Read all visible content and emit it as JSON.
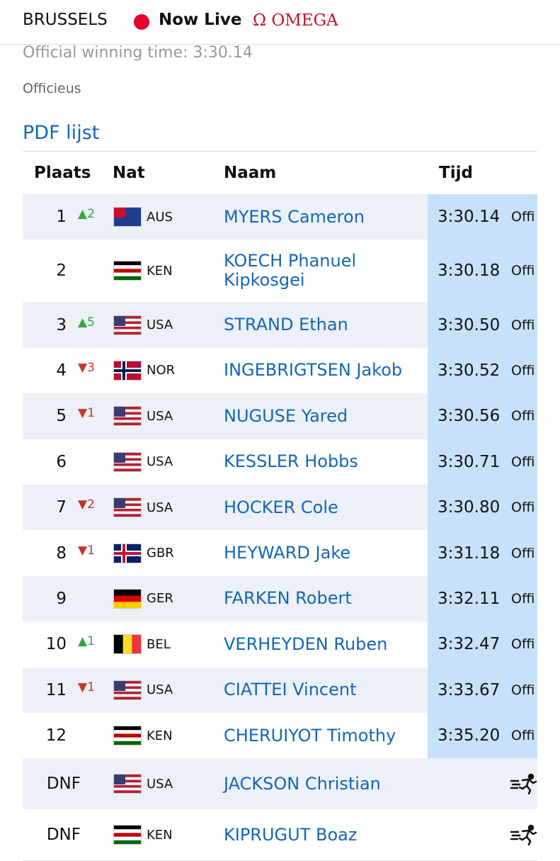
{
  "header": {
    "city": "BRUSSELS",
    "live": "Now Live",
    "logo": "Ω OMEGA"
  },
  "info": {
    "winning_time": "Official winning time: 3:30.14",
    "status": "Officieus",
    "pdf_link": "PDF lijst"
  },
  "table": {
    "columns": [
      "Plaats",
      "Nat",
      "Naam",
      "Tijd"
    ],
    "rows": [
      {
        "place": "1",
        "change": "▲2",
        "change_color": "#3aa63a",
        "nat": "AUS",
        "flag": {
          "bg": "#1f3c8f",
          "canton": "#c8102e"
        },
        "name": "MYERS Cameron",
        "time": "3:30.14",
        "note": "Offi"
      },
      {
        "place": "2",
        "nat": "KEN",
        "flag": {
          "stripes": [
            "#000000",
            "#ffffff",
            "#bb0000",
            "#ffffff",
            "#006600"
          ]
        },
        "name": "KOECH Phanuel Kipkosgei",
        "time": "3:30.18",
        "note": "Offi"
      },
      {
        "place": "3",
        "change": "▲5",
        "change_color": "#3aa63a",
        "nat": "USA",
        "flag": {
          "stripes": [
            "#b22234",
            "#ffffff",
            "#b22234",
            "#ffffff",
            "#b22234",
            "#ffffff",
            "#b22234"
          ],
          "canton": "#3c3b6e"
        },
        "name": "STRAND Ethan",
        "time": "3:30.50",
        "note": "Offi"
      },
      {
        "place": "4",
        "change": "▼3",
        "change_color": "#c0392b",
        "nat": "NOR",
        "flag": {
          "bg": "#ba0c2f",
          "cross": "#ffffff",
          "inner": "#00205b"
        },
        "name": "INGEBRIGTSEN Jakob",
        "time": "3:30.52",
        "note": "Offi"
      },
      {
        "place": "5",
        "change": "▼1",
        "change_color": "#c0392b",
        "nat": "USA",
        "flag": {
          "stripes": [
            "#b22234",
            "#ffffff",
            "#b22234",
            "#ffffff",
            "#b22234",
            "#ffffff",
            "#b22234"
          ],
          "canton": "#3c3b6e"
        },
        "name": "NUGUSE Yared",
        "time": "3:30.56",
        "note": "Offi"
      },
      {
        "place": "6",
        "nat": "USA",
        "flag": {
          "stripes": [
            "#b22234",
            "#ffffff",
            "#b22234",
            "#ffffff",
            "#b22234",
            "#ffffff",
            "#b22234"
          ],
          "canton": "#3c3b6e"
        },
        "name": "KESSLER Hobbs",
        "time": "3:30.71",
        "note": "Offi"
      },
      {
        "place": "7",
        "change": "▼2",
        "change_color": "#c0392b",
        "nat": "USA",
        "flag": {
          "stripes": [
            "#b22234",
            "#ffffff",
            "#b22234",
            "#ffffff",
            "#b22234",
            "#ffffff",
            "#b22234"
          ],
          "canton": "#3c3b6e"
        },
        "name": "HOCKER Cole",
        "time": "3:30.80",
        "note": "Offi"
      },
      {
        "place": "8",
        "change": "▼1",
        "change_color": "#c0392b",
        "nat": "GBR",
        "flag": {
          "bg": "#012169",
          "cross": "#ffffff",
          "inner": "#c8102e"
        },
        "name": "HEYWARD Jake",
        "time": "3:31.18",
        "note": "Offi"
      },
      {
        "place": "9",
        "nat": "GER",
        "flag": {
          "stripes": [
            "#000000",
            "#dd0000",
            "#ffce00"
          ]
        },
        "name": "FARKEN Robert",
        "time": "3:32.11",
        "note": "Offi"
      },
      {
        "place": "10",
        "change": "▲1",
        "change_color": "#3aa63a",
        "nat": "BEL",
        "flag": {
          "vstripes": [
            "#000000",
            "#fdda24",
            "#ef3340"
          ]
        },
        "name": "VERHEYDEN Ruben",
        "time": "3:32.47",
        "note": "Offi"
      },
      {
        "place": "11",
        "change": "▼1",
        "change_color": "#c0392b",
        "nat": "USA",
        "flag": {
          "stripes": [
            "#b22234",
            "#ffffff",
            "#b22234",
            "#ffffff",
            "#b22234",
            "#ffffff",
            "#b22234"
          ],
          "canton": "#3c3b6e"
        },
        "name": "CIATTEI Vincent",
        "time": "3:33.67",
        "note": "Offi"
      },
      {
        "place": "12",
        "nat": "KEN",
        "flag": {
          "stripes": [
            "#000000",
            "#ffffff",
            "#bb0000",
            "#ffffff",
            "#006600"
          ]
        },
        "name": "CHERUIYOT Timothy",
        "time": "3:35.20",
        "note": "Offi"
      },
      {
        "place": "DNF",
        "nat": "USA",
        "flag": {
          "stripes": [
            "#b22234",
            "#ffffff",
            "#b22234",
            "#ffffff",
            "#b22234",
            "#ffffff",
            "#b22234"
          ],
          "canton": "#3c3b6e"
        },
        "name": "JACKSON Christian"
      },
      {
        "place": "DNF",
        "nat": "KEN",
        "flag": {
          "stripes": [
            "#000000",
            "#ffffff",
            "#bb0000",
            "#ffffff",
            "#006600"
          ]
        },
        "name": "KIPRUGUT Boaz"
      }
    ]
  }
}
